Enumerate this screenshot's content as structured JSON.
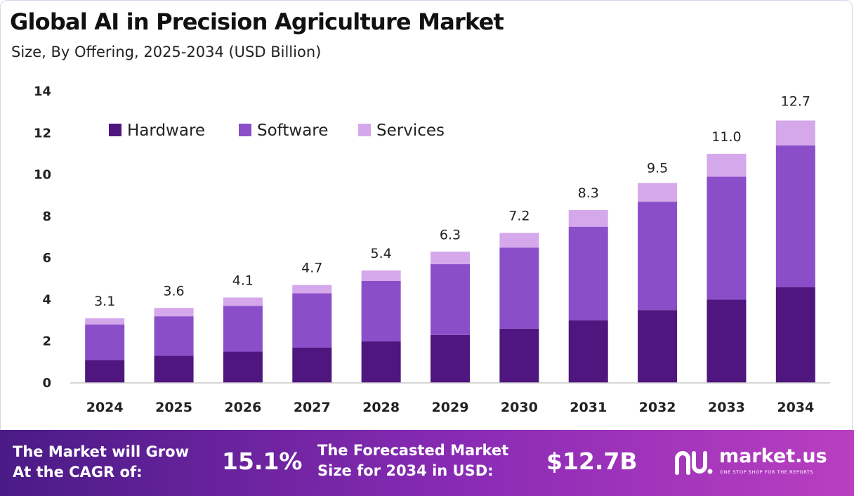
{
  "header": {
    "title": "Global AI in Precision Agriculture Market",
    "subtitle": "Size, By Offering, 2025-2034 (USD Billion)"
  },
  "colors": {
    "hardware": "#4e167e",
    "software": "#8b4ec9",
    "services": "#d4a8ea",
    "footer_start": "#4a1b86",
    "footer_end": "#b93fc0"
  },
  "chart_data": {
    "type": "bar",
    "stacked": true,
    "categories": [
      "2024",
      "2025",
      "2026",
      "2027",
      "2028",
      "2029",
      "2030",
      "2031",
      "2032",
      "2033",
      "2034"
    ],
    "series": [
      {
        "name": "Hardware",
        "values": [
          1.1,
          1.3,
          1.5,
          1.7,
          2.0,
          2.3,
          2.6,
          3.0,
          3.5,
          4.0,
          4.6
        ]
      },
      {
        "name": "Software",
        "values": [
          1.7,
          1.9,
          2.2,
          2.6,
          2.9,
          3.4,
          3.9,
          4.5,
          5.2,
          5.9,
          6.8
        ]
      },
      {
        "name": "Services",
        "values": [
          0.3,
          0.4,
          0.4,
          0.4,
          0.5,
          0.6,
          0.7,
          0.8,
          0.9,
          1.1,
          1.2
        ]
      }
    ],
    "totals": [
      "3.1",
      "3.6",
      "4.1",
      "4.7",
      "5.4",
      "6.3",
      "7.2",
      "8.3",
      "9.5",
      "11.0",
      "12.7"
    ],
    "yticks": [
      "0",
      "2",
      "4",
      "6",
      "8",
      "10",
      "12",
      "14"
    ],
    "ylim": [
      0,
      14
    ],
    "grid": false,
    "legend_position": "top-left"
  },
  "footer": {
    "cagr_label_line1": "The Market will Grow",
    "cagr_label_line2": "At the CAGR of:",
    "cagr_value": "15.1%",
    "forecast_label_line1": "The Forecasted Market",
    "forecast_label_line2": "Size for 2034 in USD:",
    "forecast_value": "$12.7B",
    "logo_name": "market.us",
    "logo_tagline": "ONE STOP SHOP FOR THE REPORTS",
    "logo_icon": "market-us-logo-icon"
  }
}
